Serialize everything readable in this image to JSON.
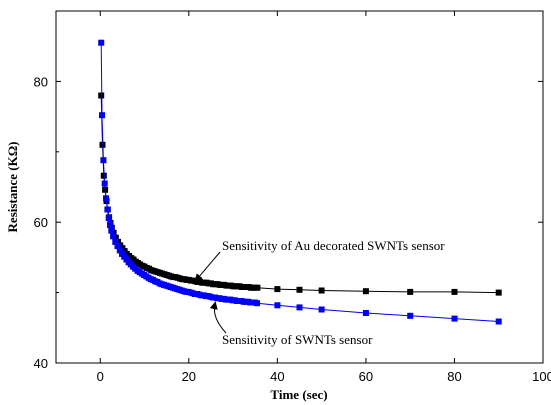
{
  "chart_data": {
    "type": "scatter",
    "xlabel": "Time (sec)",
    "ylabel": "Resistance (KΩ)",
    "xlim": [
      -10,
      100
    ],
    "ylim": [
      40,
      90
    ],
    "xticks": [
      0,
      20,
      40,
      60,
      80,
      100
    ],
    "yticks": [
      40,
      60,
      80
    ],
    "tick_labels_x": [
      "0",
      "20",
      "40",
      "60",
      "80",
      "100"
    ],
    "tick_labels_y": [
      "40",
      "60",
      "80"
    ],
    "grid": false,
    "series": [
      {
        "color": "#000000",
        "x": [
          0.2,
          0.5,
          0.8,
          1.1,
          1.4,
          1.7,
          2.0,
          2.3,
          2.6,
          3.0,
          3.5,
          4.0,
          4.5,
          5.0,
          5.5,
          6.0,
          6.5,
          7.0,
          7.5,
          8.0,
          8.5,
          9.0,
          9.5,
          10.0,
          10.5,
          11.0,
          11.5,
          12.0,
          12.5,
          13.0,
          13.5,
          14.0,
          14.5,
          15.0,
          15.5,
          16.0,
          16.5,
          17.0,
          17.5,
          18.0,
          18.5,
          19.0,
          19.5,
          20.0,
          20.5,
          21.0,
          21.5,
          22.0,
          22.5,
          23.0,
          23.5,
          24.0,
          24.5,
          25.0,
          25.5,
          26.0,
          26.5,
          27.0,
          27.5,
          28.0,
          28.5,
          29.0,
          29.5,
          30.0,
          30.5,
          31.0,
          31.5,
          32.0,
          32.5,
          33.0,
          33.5,
          34.0,
          34.5,
          35.0,
          35.5,
          40,
          45,
          50,
          60,
          70,
          80,
          90
        ],
        "y": [
          78.0,
          71.0,
          66.6,
          64.6,
          63.0,
          61.8,
          60.7,
          59.9,
          59.2,
          58.5,
          57.8,
          57.2,
          56.7,
          56.3,
          55.9,
          55.5,
          55.2,
          54.9,
          54.7,
          54.4,
          54.2,
          54.0,
          53.8,
          53.7,
          53.5,
          53.4,
          53.2,
          53.1,
          53.0,
          52.9,
          52.8,
          52.7,
          52.6,
          52.5,
          52.4,
          52.3,
          52.2,
          52.2,
          52.1,
          52.0,
          51.9,
          51.9,
          51.8,
          51.8,
          51.7,
          51.7,
          51.6,
          51.5,
          51.5,
          51.4,
          51.4,
          51.4,
          51.3,
          51.3,
          51.2,
          51.2,
          51.2,
          51.1,
          51.1,
          51.1,
          51.0,
          51.0,
          51.0,
          50.9,
          50.9,
          50.9,
          50.9,
          50.8,
          50.8,
          50.8,
          50.8,
          50.7,
          50.7,
          50.7,
          50.7,
          50.5,
          50.4,
          50.3,
          50.2,
          50.1,
          50.1,
          50.0
        ]
      },
      {
        "color": "#0000ff",
        "x": [
          0.2,
          0.4,
          0.7,
          1.0,
          1.3,
          1.6,
          1.9,
          2.2,
          2.5,
          2.9,
          3.4,
          3.9,
          4.4,
          4.9,
          5.4,
          5.9,
          6.4,
          6.9,
          7.4,
          7.9,
          8.4,
          8.9,
          9.4,
          9.9,
          10.4,
          10.9,
          11.4,
          11.9,
          12.4,
          12.9,
          13.4,
          13.9,
          14.4,
          14.9,
          15.4,
          15.9,
          16.4,
          16.9,
          17.4,
          17.9,
          18.4,
          18.9,
          19.4,
          19.9,
          20.4,
          20.9,
          21.4,
          21.9,
          22.4,
          22.9,
          23.4,
          23.9,
          24.4,
          24.9,
          25.4,
          25.9,
          26.4,
          26.9,
          27.4,
          27.9,
          28.4,
          28.9,
          29.4,
          29.9,
          30.4,
          30.9,
          31.4,
          31.9,
          32.4,
          32.9,
          33.4,
          33.9,
          34.4,
          34.9,
          35.4,
          40,
          45,
          50,
          60,
          70,
          80,
          90
        ],
        "y": [
          85.5,
          75.2,
          68.8,
          65.5,
          63.4,
          61.8,
          60.6,
          59.6,
          58.8,
          58.0,
          57.2,
          56.6,
          56.0,
          55.5,
          55.1,
          54.7,
          54.3,
          54.0,
          53.7,
          53.4,
          53.1,
          52.9,
          52.7,
          52.5,
          52.3,
          52.1,
          51.9,
          51.8,
          51.6,
          51.5,
          51.3,
          51.2,
          51.1,
          51.0,
          50.9,
          50.8,
          50.7,
          50.6,
          50.5,
          50.4,
          50.3,
          50.2,
          50.1,
          50.1,
          50.0,
          49.9,
          49.8,
          49.8,
          49.7,
          49.6,
          49.6,
          49.5,
          49.5,
          49.4,
          49.3,
          49.3,
          49.2,
          49.2,
          49.1,
          49.1,
          49.0,
          49.0,
          49.0,
          48.9,
          48.9,
          48.8,
          48.8,
          48.8,
          48.7,
          48.7,
          48.7,
          48.6,
          48.6,
          48.6,
          48.5,
          48.2,
          47.9,
          47.6,
          47.1,
          46.7,
          46.3,
          45.9
        ]
      }
    ],
    "annotations": [
      {
        "text": "Sensitivity of Au decorated SWNTs sensor",
        "target_x": 21,
        "target_y": 51.9
      },
      {
        "text": "Sensitivity of SWNTs sensor",
        "target_x": 26,
        "target_y": 49.2
      }
    ]
  }
}
